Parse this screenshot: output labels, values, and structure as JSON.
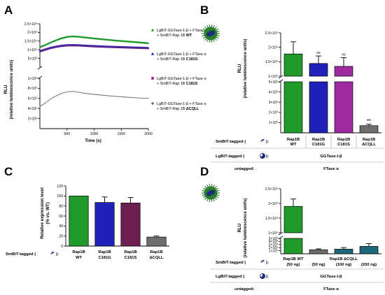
{
  "colors": {
    "green": "#1f9a2b",
    "purple_pt": "#5a2394",
    "blue": "#1f22b8",
    "magenta": "#9e2aa0",
    "plum": "#6e1f52",
    "grey": "#6e6e6e",
    "teal": "#1c6878",
    "ecoli_icon": "#2a7d2a"
  },
  "chart_data": [
    {
      "panel": "A",
      "type": "line",
      "xlabel": "Time (s)",
      "ylabel": "RLU",
      "ylabel2": "(relative luminescence units)",
      "xlim": [
        0,
        2000
      ],
      "xticks": [
        "500",
        "1000",
        "1500",
        "2000"
      ],
      "y_upper_ticks": [
        "2.5×10⁴",
        "2×10⁴",
        "1.5×10⁴",
        "1×10⁴",
        "5×10³"
      ],
      "y_lower_ticks": [
        "1×10³",
        "8×10²",
        "6×10²",
        "4×10²",
        "2×10²"
      ],
      "ylim_upper": [
        0,
        25000
      ],
      "ylim_lower": [
        0,
        1000
      ],
      "series": [
        {
          "name": "LgBiT-GGTase-1-β + FTase α + SmBiT-Rap 1B WT",
          "color_key": "green",
          "marker": "triangle-up",
          "x": [
            0,
            100,
            200,
            300,
            400,
            500,
            600,
            700,
            800,
            1000,
            1200,
            1400,
            1600,
            1800,
            2000
          ],
          "y": [
            11500,
            12800,
            14200,
            15500,
            16600,
            17400,
            17700,
            17500,
            17200,
            16500,
            15900,
            15300,
            14800,
            14300,
            13800
          ]
        },
        {
          "name": "LgBiT-GGTase-1-β + FTase α + SmBiT-Rap 1B C181G",
          "color_key": "blue",
          "marker": "triangle-up",
          "x": [
            0,
            100,
            200,
            300,
            400,
            500,
            600,
            700,
            800,
            1000,
            1200,
            1400,
            1600,
            1800,
            2000
          ],
          "y": [
            9300,
            10300,
            11200,
            11900,
            12400,
            12700,
            12800,
            12700,
            12500,
            12200,
            11900,
            11700,
            11500,
            11300,
            11100
          ]
        },
        {
          "name": "LgBiT-GGTase-1-β + FTase α + SmBiT-Rap 1B C181S",
          "color_key": "purple_pt",
          "marker": "circle",
          "x": [
            0,
            100,
            200,
            300,
            400,
            500,
            600,
            700,
            800,
            1000,
            1200,
            1400,
            1600,
            1800,
            2000
          ],
          "y": [
            9000,
            10000,
            10900,
            11600,
            12100,
            12400,
            12500,
            12400,
            12200,
            11900,
            11600,
            11400,
            11200,
            11000,
            10800
          ]
        },
        {
          "name": "LgBiT-GGTase-1-β + FTase α + SmBiT-Rap 1B ΔCQLL",
          "color_key": "grey",
          "marker": "diamond",
          "x": [
            0,
            100,
            200,
            300,
            400,
            500,
            600,
            700,
            800,
            1000,
            1200,
            1400,
            1600,
            1800,
            2000
          ],
          "y": [
            440,
            510,
            590,
            650,
            700,
            730,
            740,
            725,
            705,
            680,
            660,
            640,
            625,
            610,
            600
          ]
        }
      ]
    },
    {
      "panel": "B",
      "type": "bar",
      "ylabel": "RLU",
      "ylabel2": "(relative luminescence units)",
      "categories": [
        "Rap1B WT",
        "Rap1B C181G",
        "Rap1B C181S",
        "Rap1B ΔCQLL"
      ],
      "values": [
        17700,
        14400,
        13400,
        700
      ],
      "errors": [
        4200,
        2600,
        3000,
        140
      ],
      "significance": [
        "",
        "ns",
        "ns",
        "***"
      ],
      "color_keys": [
        "green",
        "blue",
        "magenta",
        "grey"
      ],
      "y_upper_ticks": [
        "2.5×10⁴",
        "2×10⁴",
        "1.5×10⁴",
        "1×10⁴"
      ],
      "y_lower_ticks": [
        "5×10³",
        "4×10³",
        "3×10³",
        "2×10³",
        "1×10³"
      ],
      "ylim_upper": [
        10000,
        25000
      ],
      "ylim_lower": [
        0,
        5000
      ]
    },
    {
      "panel": "C",
      "type": "bar",
      "ylabel": "Relative expression level",
      "ylabel2": "(% vs. WT)",
      "categories": [
        "Rap1B WT",
        "Rap1B C181G",
        "Rap1B C181S",
        "Rap1B ΔCQLL"
      ],
      "values": [
        100,
        87,
        86,
        18
      ],
      "errors": [
        0,
        11,
        11,
        2
      ],
      "color_keys": [
        "green",
        "blue",
        "plum",
        "grey"
      ],
      "yticks": [
        "0",
        "20",
        "40",
        "60",
        "80",
        "100",
        "120"
      ],
      "ylim": [
        0,
        120
      ]
    },
    {
      "panel": "D",
      "type": "bar",
      "ylabel": "RLU",
      "ylabel2": "(relative luminescence units)",
      "categories": [
        "Rap1B WT (50 ng)",
        "(50 ng)",
        "(100 ng)",
        "(200 ng)"
      ],
      "values": [
        19000,
        1300,
        1500,
        2400
      ],
      "errors": [
        2500,
        300,
        500,
        900
      ],
      "color_keys": [
        "green",
        "grey",
        "teal",
        "teal"
      ],
      "y_upper_ticks": [
        "2.5×10⁴",
        "2×10⁴",
        "1.5×10⁴",
        "1×10⁴"
      ],
      "y_lower_ticks": [
        "5×10³",
        "4×10³",
        "3×10³",
        "2×10³",
        "1×10³"
      ],
      "ylim_upper": [
        10000,
        25000
      ],
      "ylim_lower": [
        0,
        5000
      ]
    }
  ],
  "legend": [
    {
      "line1": "LgBiT-GGTase-1-β + FTase α",
      "line2_prefix": "+ SmBiT-Rap 1B ",
      "line2_bold": "WT",
      "color_key": "green",
      "marker": "triangle-up"
    },
    {
      "line1": "LgBiT-GGTase-1-β + FTase α",
      "line2_prefix": "+ SmBiT-Rap 1B ",
      "line2_bold": "C181G",
      "color_key": "blue",
      "marker": "triangle-up"
    },
    {
      "line1": "LgBiT-GGTase-1-β + FTase α",
      "line2_prefix": "+ SmBiT-Rap 1B ",
      "line2_bold": "C181S",
      "color_key": "magenta",
      "marker": "circle"
    },
    {
      "line1": "LgBiT-GGTase-1-β + FTase α",
      "line2_prefix": "+ SmBiT-Rap 1B ",
      "line2_bold": "ΔCQLL",
      "color_key": "grey",
      "marker": "diamond"
    }
  ],
  "tables": {
    "B": {
      "smbit_label": "SmBiT-tagged (",
      "smbit_close": "):",
      "lgbit_label": "LgBiT-tagged (",
      "lgbit_close": "):",
      "lgbit_value": "GGTase-I-β",
      "untagged_label": "untagged:",
      "untagged_value": "FTase α"
    },
    "C": {
      "smbit_label": "SmBiT-tagged (",
      "smbit_close": "):"
    },
    "D": {
      "smbit_label": "SmBiT-tagged (",
      "smbit_close": "):",
      "group_label": "Rap1B ΔCQLL",
      "lgbit_label": "LgBiT-tagged (",
      "lgbit_close": "):",
      "lgbit_value": "GGTase-I-β",
      "untagged_label": "untagged:",
      "untagged_value": "FTase α"
    }
  }
}
